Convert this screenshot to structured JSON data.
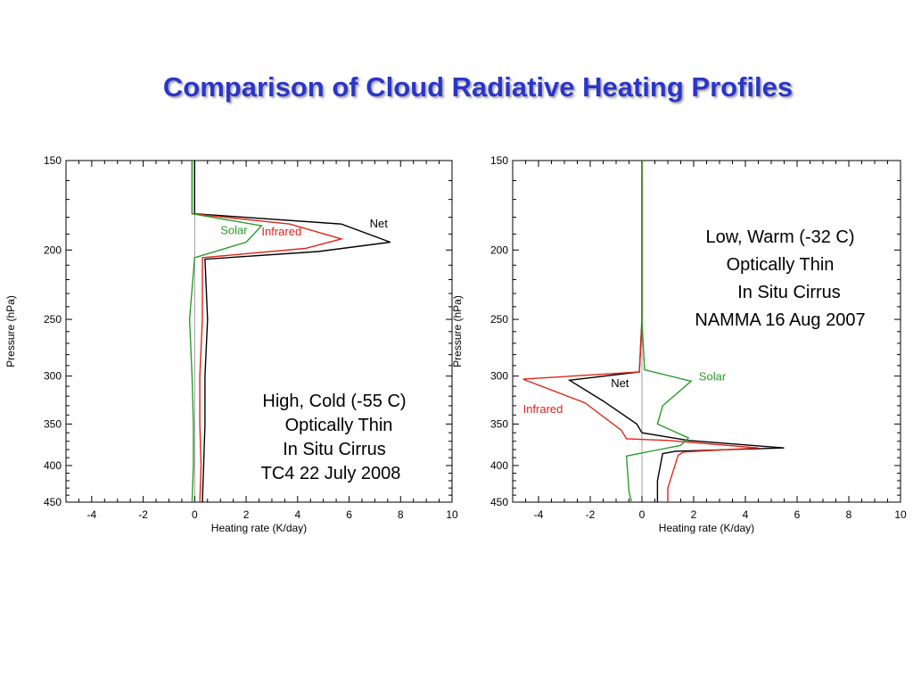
{
  "page": {
    "title": "Comparison of Cloud Radiative Heating Profiles"
  },
  "chart_data": [
    {
      "type": "line",
      "orientation": "vertical-profile",
      "xlabel": "Heating rate (K/day)",
      "ylabel": "Pressure (hPa)",
      "xlim": [
        -5,
        10
      ],
      "ylim": [
        450,
        150
      ],
      "x_ticks": [
        -4,
        -2,
        0,
        2,
        4,
        6,
        8,
        10
      ],
      "y_ticks": [
        150,
        200,
        250,
        300,
        350,
        400,
        450
      ],
      "y_inverted": true,
      "grid": false,
      "zero_line": true,
      "annotation": [
        "High, Cold (-55 C)",
        "Optically Thin",
        "In Situ Cirrus",
        "TC4 22 July 2008"
      ],
      "series": [
        {
          "name": "Net",
          "color": "#000000",
          "label_at": [
            6.8,
            186
          ],
          "points": [
            [
              0,
              150
            ],
            [
              0,
              178
            ],
            [
              5.7,
              184
            ],
            [
              7.6,
              195
            ],
            [
              4.8,
              201
            ],
            [
              0.4,
              206
            ],
            [
              0.5,
              250
            ],
            [
              0.4,
              300
            ],
            [
              0.4,
              350
            ],
            [
              0.35,
              400
            ],
            [
              0.3,
              450
            ]
          ]
        },
        {
          "name": "Infrared",
          "color": "#e0251b",
          "label_at": [
            2.6,
            191
          ],
          "points": [
            [
              -0.1,
              150
            ],
            [
              -0.1,
              178
            ],
            [
              3.7,
              184
            ],
            [
              5.7,
              193
            ],
            [
              4.3,
              199
            ],
            [
              0.3,
              205
            ],
            [
              0.3,
              250
            ],
            [
              0.2,
              300
            ],
            [
              0.2,
              350
            ],
            [
              0.25,
              400
            ],
            [
              0.2,
              450
            ]
          ]
        },
        {
          "name": "Solar",
          "color": "#2a9b2a",
          "label_at": [
            1.0,
            190
          ],
          "points": [
            [
              -0.1,
              150
            ],
            [
              -0.1,
              178
            ],
            [
              2.6,
              185
            ],
            [
              2.0,
              195
            ],
            [
              0,
              205
            ],
            [
              -0.2,
              250
            ],
            [
              -0.1,
              300
            ],
            [
              -0.05,
              350
            ],
            [
              -0.05,
              400
            ],
            [
              -0.1,
              450
            ]
          ]
        }
      ]
    },
    {
      "type": "line",
      "orientation": "vertical-profile",
      "xlabel": "Heating rate (K/day)",
      "ylabel": "Pressure (hPa)",
      "xlim": [
        -5,
        10
      ],
      "ylim": [
        450,
        150
      ],
      "x_ticks": [
        -4,
        -2,
        0,
        2,
        4,
        6,
        8,
        10
      ],
      "y_ticks": [
        150,
        200,
        250,
        300,
        350,
        400,
        450
      ],
      "y_inverted": true,
      "grid": false,
      "zero_line": true,
      "annotation": [
        "Low, Warm (-32 C)",
        "Optically Thin",
        "In Situ Cirrus",
        "NAMMA 16 Aug 2007"
      ],
      "series": [
        {
          "name": "Net",
          "color": "#000000",
          "label_at": [
            -1.2,
            311
          ],
          "points": [
            [
              0,
              150
            ],
            [
              0,
              250
            ],
            [
              -0.1,
              296
            ],
            [
              -2.8,
              304
            ],
            [
              -1.5,
              325
            ],
            [
              -0.2,
              350
            ],
            [
              0,
              360
            ],
            [
              1.8,
              369
            ],
            [
              5.5,
              378
            ],
            [
              1.3,
              382
            ],
            [
              0.8,
              385
            ],
            [
              0.6,
              420
            ],
            [
              0.6,
              450
            ]
          ]
        },
        {
          "name": "Infrared",
          "color": "#e0251b",
          "label_at": [
            -4.6,
            338
          ],
          "points": [
            [
              0,
              150
            ],
            [
              0,
              250
            ],
            [
              -0.1,
              296
            ],
            [
              -4.6,
              303
            ],
            [
              -2.2,
              327
            ],
            [
              -0.8,
              357
            ],
            [
              -0.6,
              367
            ],
            [
              1.0,
              369
            ],
            [
              4.5,
              378
            ],
            [
              1.6,
              383
            ],
            [
              1.4,
              387
            ],
            [
              1.0,
              430
            ],
            [
              1.0,
              450
            ]
          ]
        },
        {
          "name": "Solar",
          "color": "#2a9b2a",
          "label_at": [
            2.2,
            304
          ],
          "points": [
            [
              0,
              150
            ],
            [
              0,
              250
            ],
            [
              0.1,
              294
            ],
            [
              1.9,
              305
            ],
            [
              0.8,
              330
            ],
            [
              0.6,
              350
            ],
            [
              1.8,
              366
            ],
            [
              1.5,
              375
            ],
            [
              0.5,
              381
            ],
            [
              -0.6,
              388
            ],
            [
              -0.5,
              435
            ],
            [
              -0.4,
              450
            ]
          ]
        }
      ]
    }
  ]
}
